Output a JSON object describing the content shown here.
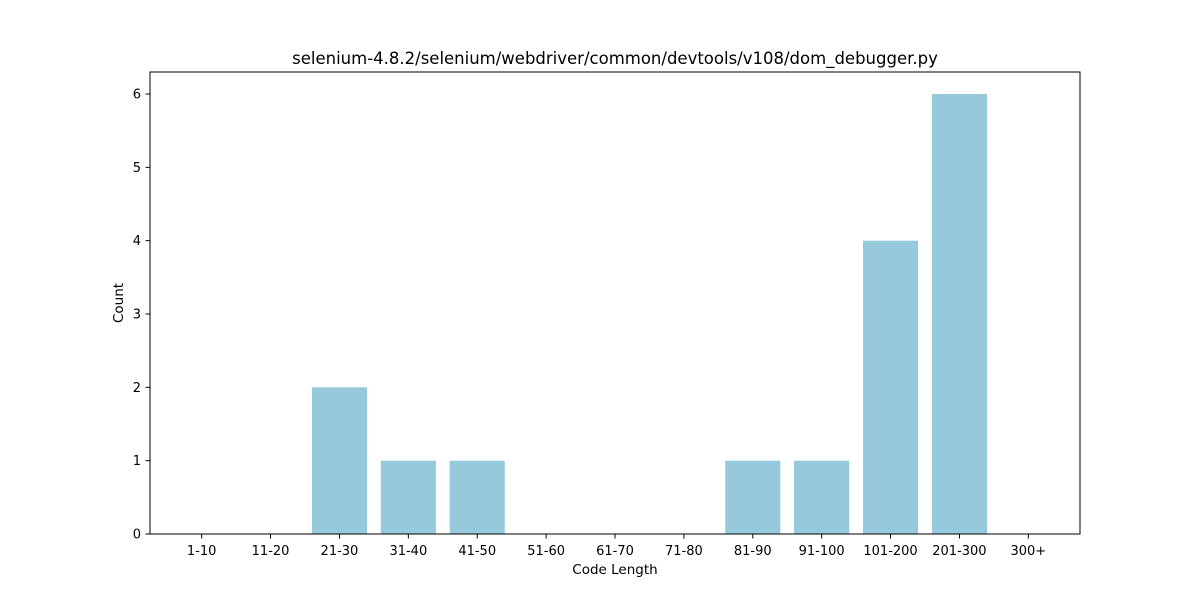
{
  "chart_data": {
    "type": "bar",
    "title": "selenium-4.8.2/selenium/webdriver/common/devtools/v108/dom_debugger.py",
    "xlabel": "Code Length",
    "ylabel": "Count",
    "categories": [
      "1-10",
      "11-20",
      "21-30",
      "31-40",
      "41-50",
      "51-60",
      "61-70",
      "71-80",
      "81-90",
      "91-100",
      "101-200",
      "201-300",
      "300+"
    ],
    "values": [
      0,
      0,
      2,
      1,
      1,
      0,
      0,
      0,
      1,
      1,
      4,
      6,
      0
    ],
    "ylim": [
      0,
      6.3
    ],
    "yticks": [
      0,
      1,
      2,
      3,
      4,
      5,
      6
    ],
    "bar_color": "#96c9dc",
    "grid": false,
    "legend": "none"
  }
}
